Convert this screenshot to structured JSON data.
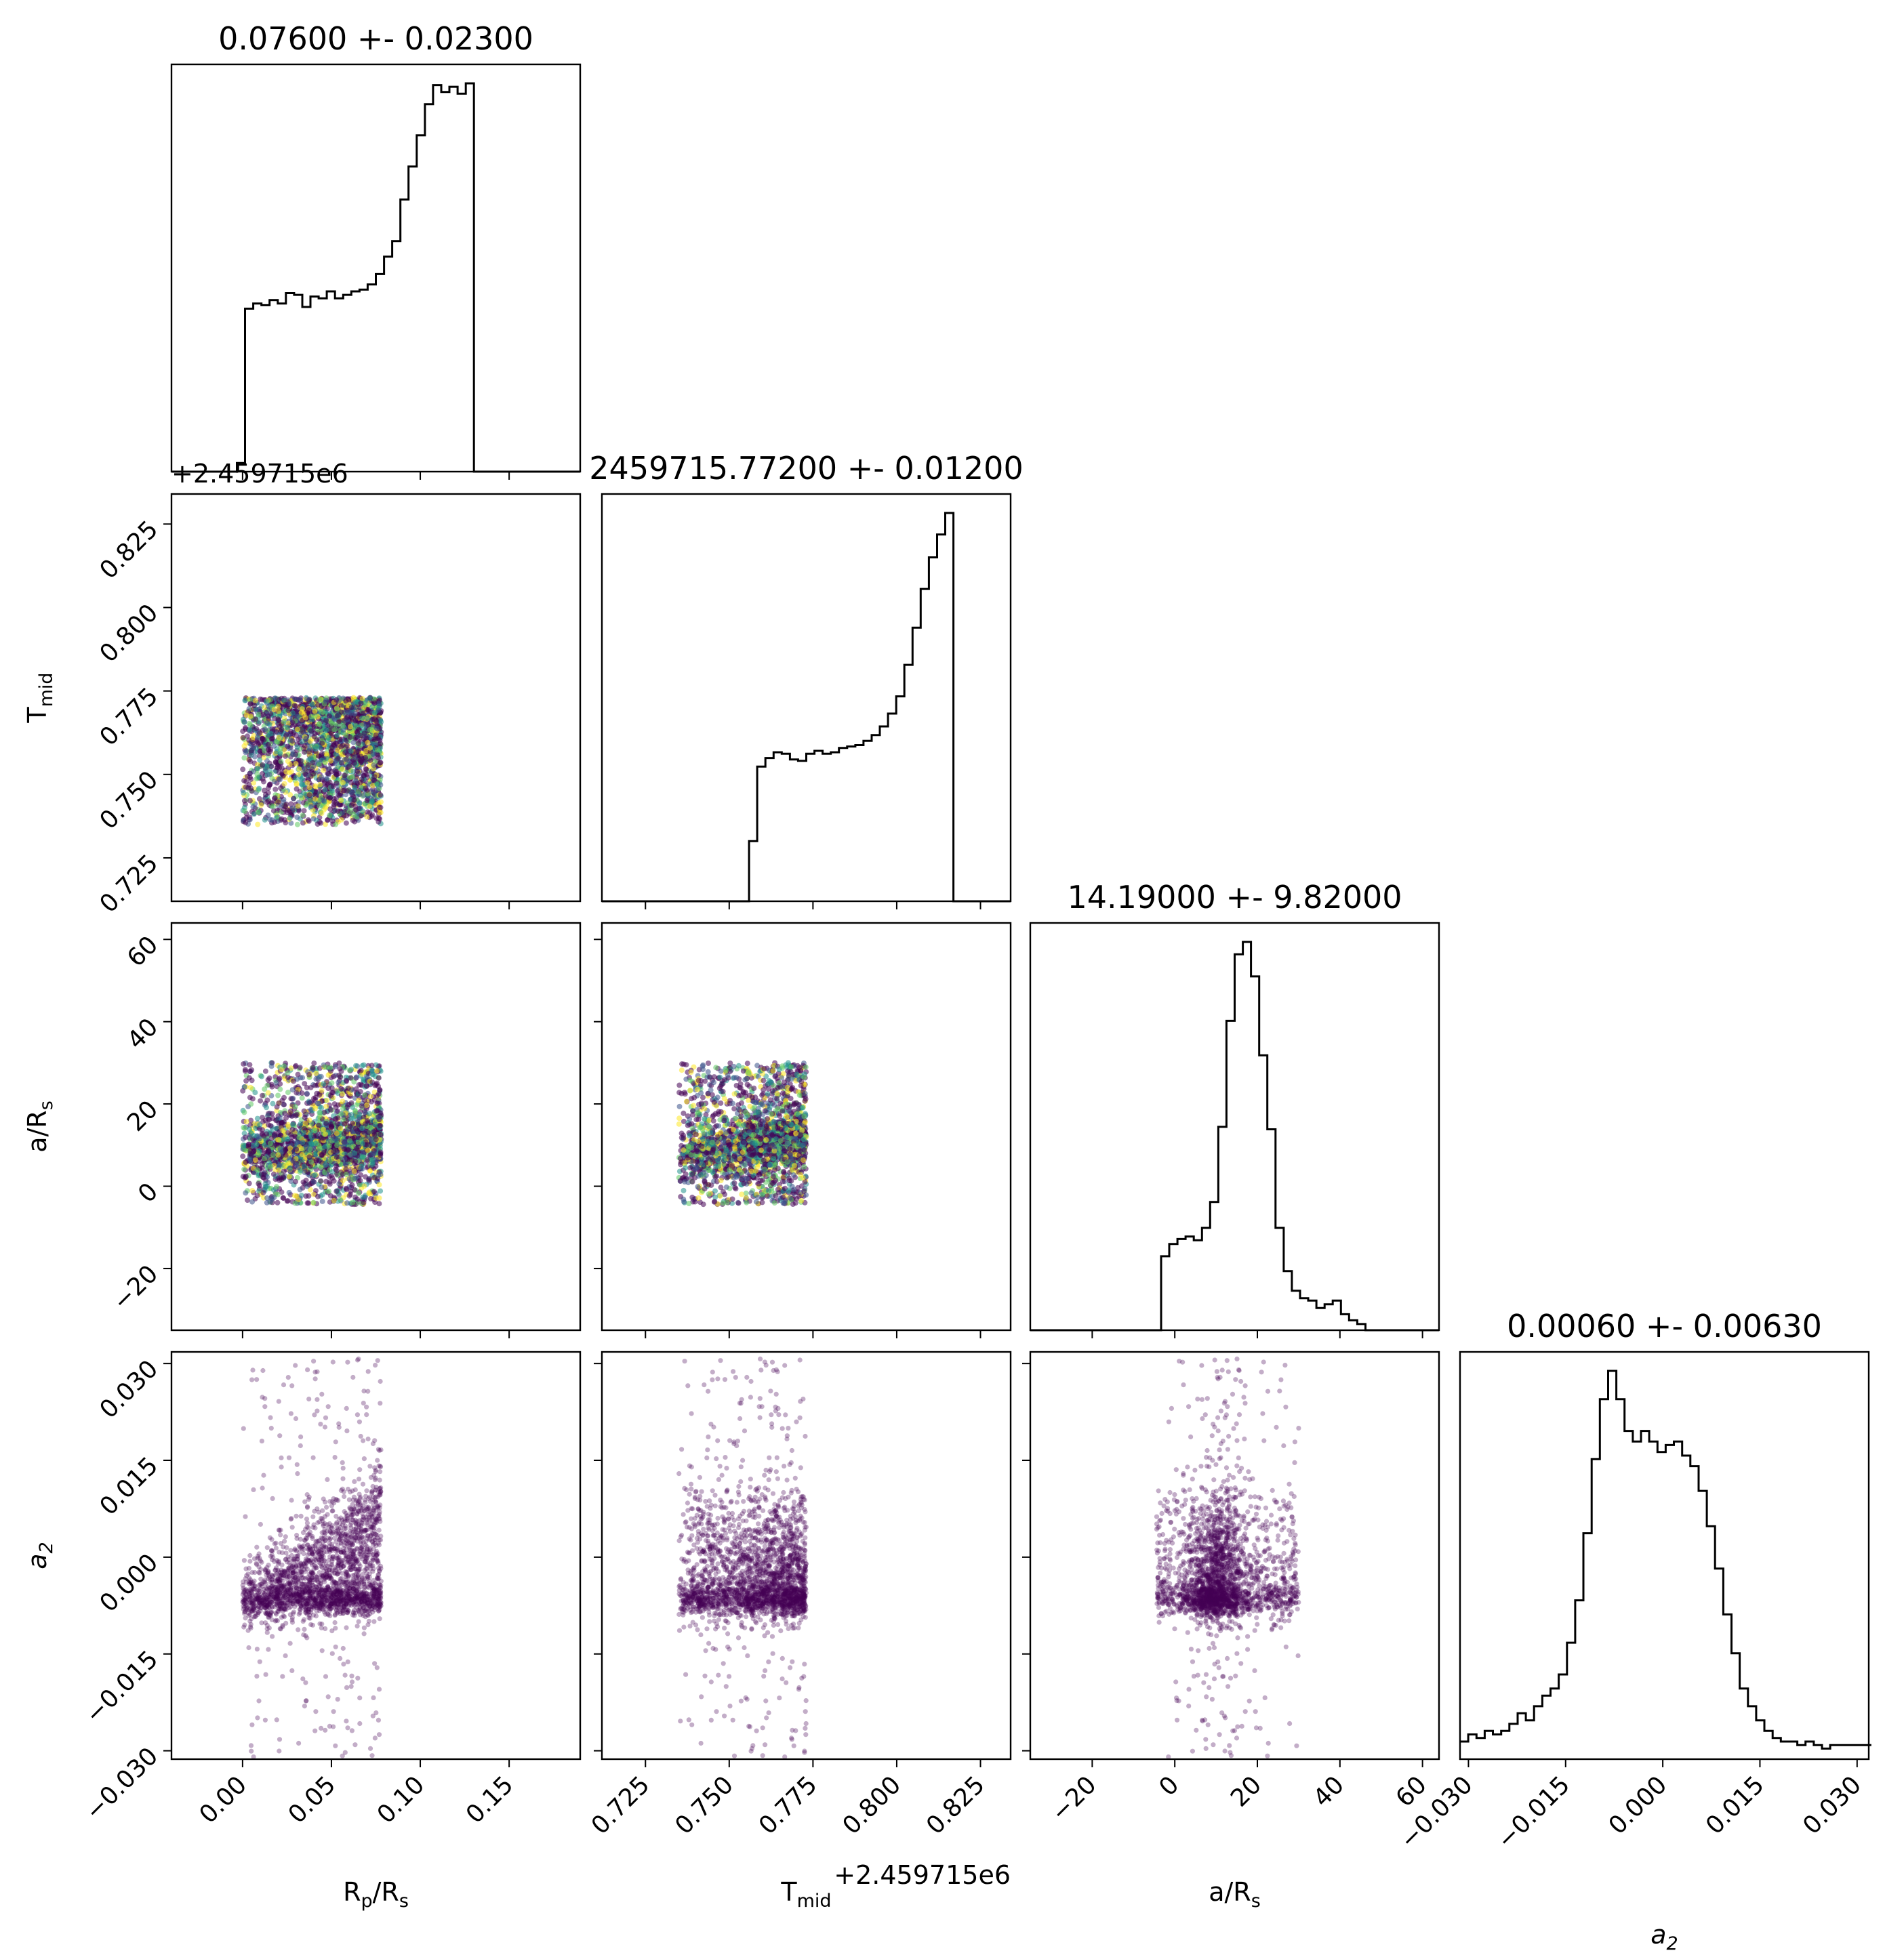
{
  "chart_data": {
    "type": "scatter",
    "subtype": "corner-plot",
    "parameters": [
      {
        "key": "rp",
        "label_main": "R",
        "label_sub": "p",
        "label_tail": "/R",
        "label_tail_sub": "s",
        "title": "0.07600 +- 0.02300",
        "range": [
          -0.04,
          0.19
        ],
        "ticks": [
          0.0,
          0.05,
          0.1,
          0.15
        ],
        "tick_labels": [
          "0.00",
          "0.05",
          "0.10",
          "0.15"
        ],
        "offset_label": ""
      },
      {
        "key": "tmid",
        "label_main": "T",
        "label_sub": "mid",
        "label_tail": "",
        "label_tail_sub": "",
        "title": "2459715.77200 +- 0.01200",
        "range": [
          0.712,
          0.834
        ],
        "ticks": [
          0.725,
          0.75,
          0.775,
          0.8,
          0.825
        ],
        "tick_labels": [
          "0.725",
          "0.750",
          "0.775",
          "0.800",
          "0.825"
        ],
        "offset_label": "+2.459715e6"
      },
      {
        "key": "ars",
        "label_main": "a/R",
        "label_sub": "s",
        "label_tail": "",
        "label_tail_sub": "",
        "title": "14.19000 +- 9.82000",
        "range": [
          -35,
          64
        ],
        "ticks": [
          -20,
          0,
          20,
          40,
          60
        ],
        "tick_labels": [
          "−20",
          "0",
          "20",
          "40",
          "60"
        ],
        "offset_label": ""
      },
      {
        "key": "a2",
        "label_main": "a",
        "label_sub": "2",
        "label_tail": "",
        "label_tail_sub": "",
        "label_italic": true,
        "title": "0.00060 +- 0.00630",
        "range": [
          -0.0313,
          0.0318
        ],
        "ticks": [
          -0.03,
          -0.015,
          0.0,
          0.015,
          0.03
        ],
        "tick_labels": [
          "−0.030",
          "−0.015",
          "0.000",
          "0.015",
          "0.030"
        ],
        "offset_label": ""
      }
    ],
    "histograms": {
      "rp": {
        "bin_start": -0.04,
        "bin_width": 0.0046,
        "counts": [
          0,
          0,
          0,
          0,
          0,
          0,
          0,
          0,
          0.5,
          9.4,
          9.7,
          9.6,
          9.9,
          9.7,
          10.3,
          10.2,
          9.5,
          10.1,
          10.0,
          10.4,
          10.0,
          10.2,
          10.4,
          10.5,
          10.8,
          11.4,
          12.4,
          13.3,
          15.7,
          17.6,
          19.4,
          21.2,
          22.3,
          21.9,
          22.2,
          21.8,
          22.4,
          0,
          0,
          0,
          0,
          0,
          0,
          0,
          0,
          0,
          0,
          0,
          0,
          0
        ]
      },
      "tmid": {
        "bin_start": 0.712,
        "bin_width": 0.00244,
        "counts": [
          0,
          0,
          0,
          0,
          0,
          0,
          0,
          0,
          0,
          0,
          0,
          0,
          0,
          0,
          0,
          0,
          0,
          0,
          4.2,
          9.4,
          10.0,
          10.4,
          10.3,
          9.9,
          9.8,
          10.3,
          10.5,
          10.3,
          10.4,
          10.7,
          10.8,
          10.9,
          11.2,
          11.6,
          12.2,
          13.1,
          14.3,
          16.5,
          19.1,
          21.8,
          24.0,
          25.6,
          27.1,
          0,
          0,
          0,
          0,
          0,
          0,
          0
        ]
      },
      "ars": {
        "bin_start": -35,
        "bin_width": 1.98,
        "counts": [
          0,
          0,
          0,
          0,
          0,
          0,
          0,
          0,
          0,
          0,
          0,
          0,
          0,
          0,
          0,
          0,
          6.0,
          7.0,
          7.4,
          7.6,
          7.3,
          8.3,
          10.4,
          16.5,
          25.1,
          30.5,
          31.5,
          28.7,
          22.3,
          16.3,
          8.3,
          4.8,
          3.2,
          2.6,
          2.4,
          1.8,
          2.1,
          2.4,
          1.3,
          0.8,
          0.5,
          0,
          0,
          0,
          0,
          0,
          0,
          0,
          0,
          0
        ]
      },
      "a2": {
        "bin_start": -0.0313,
        "bin_width": 0.00127,
        "counts": [
          0.5,
          0.7,
          0.6,
          0.8,
          0.7,
          0.8,
          1.0,
          1.3,
          1.1,
          1.5,
          1.8,
          2.0,
          2.4,
          3.3,
          4.5,
          6.4,
          8.5,
          10.2,
          11.0,
          10.2,
          9.3,
          9.0,
          9.3,
          9.0,
          8.7,
          8.9,
          9.0,
          8.6,
          8.3,
          7.6,
          6.6,
          5.4,
          4.1,
          3.0,
          2.0,
          1.5,
          1.1,
          0.8,
          0.6,
          0.5,
          0.5,
          0.4,
          0.5,
          0.4,
          0.3,
          0.4,
          0.4,
          0.4,
          0.4,
          0.4
        ]
      }
    },
    "scatter_colormap": "viridis",
    "scatter_color": "#440154",
    "histogram_color": "#000000",
    "grid": false,
    "legend": "none"
  }
}
